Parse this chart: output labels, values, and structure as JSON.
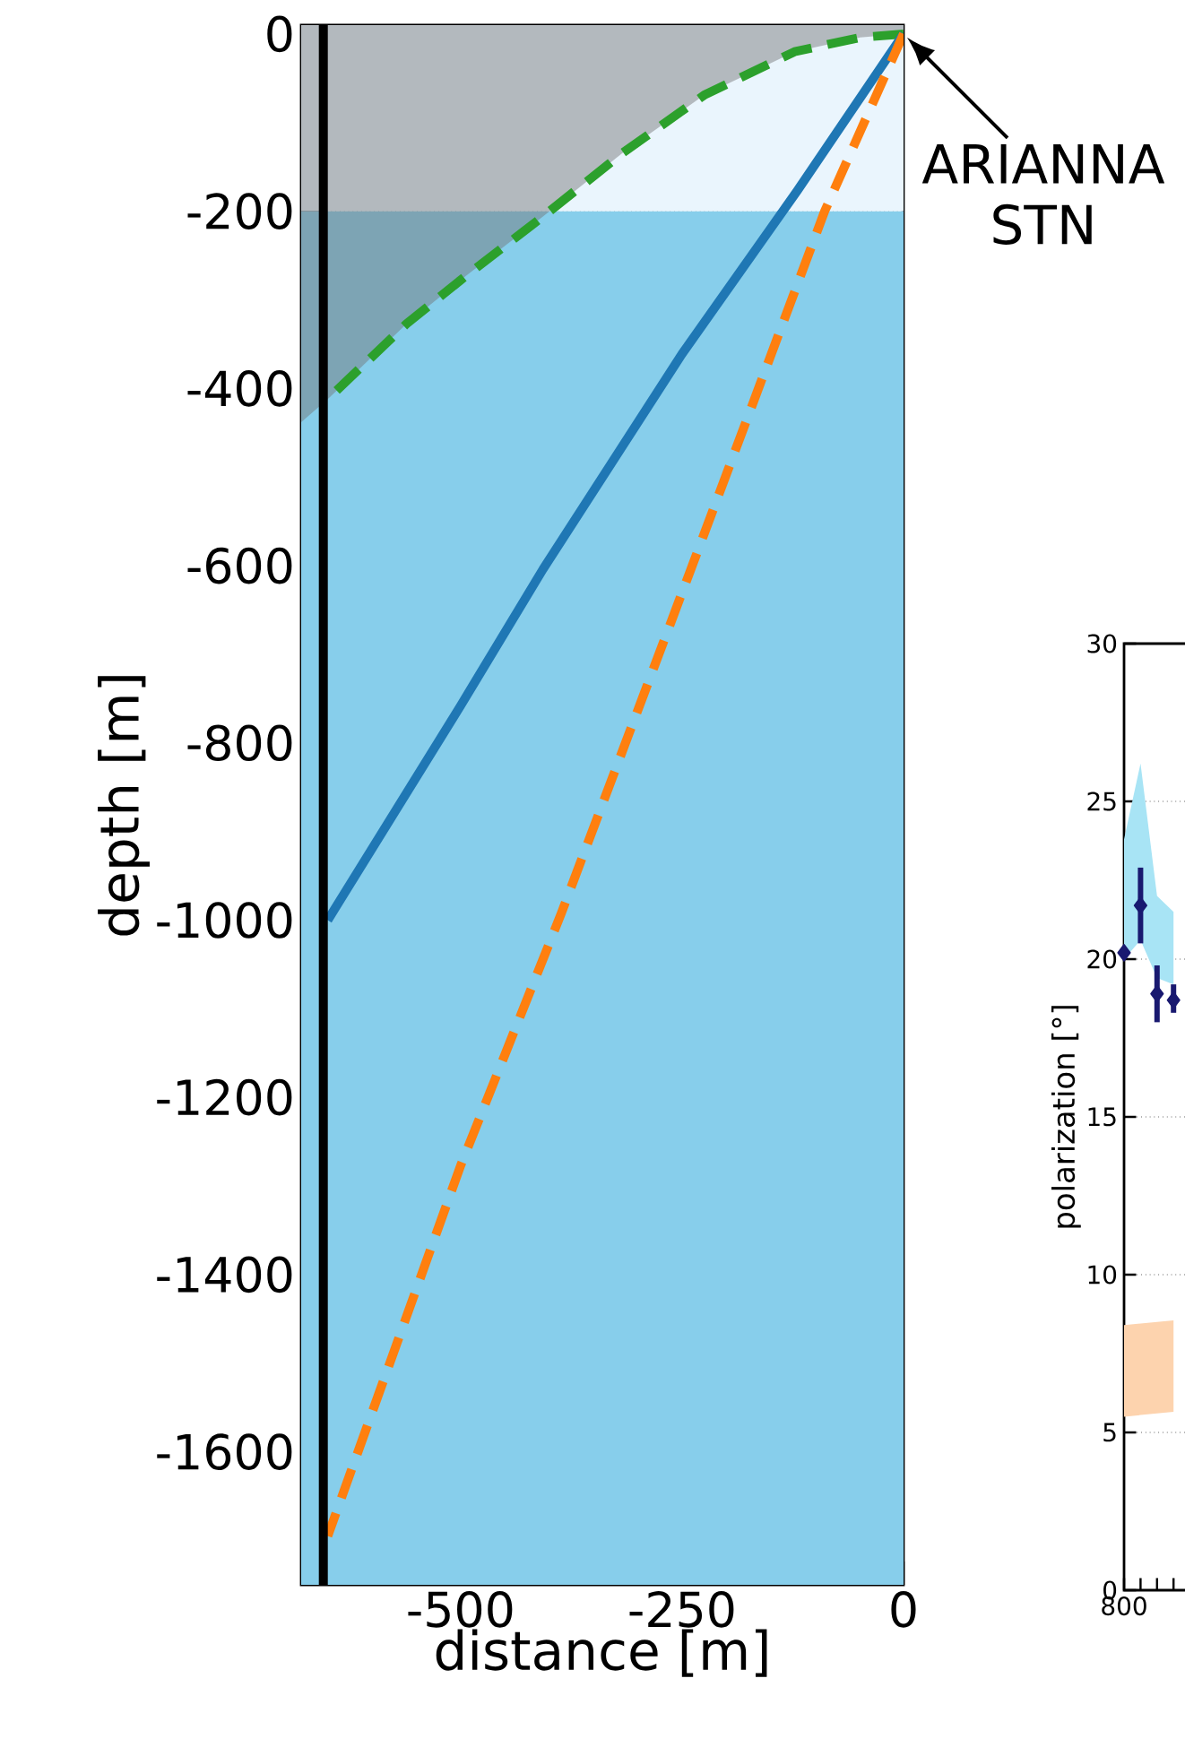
{
  "chart_data": [
    {
      "type": "line",
      "xlabel": "distance [m]",
      "ylabel": "depth [m]",
      "xlim": [
        -680,
        0
      ],
      "ylim": [
        -1750,
        10
      ],
      "xticks": [
        -500,
        -250,
        0
      ],
      "yticks": [
        0,
        -200,
        -400,
        -600,
        -800,
        -1000,
        -1200,
        -1400,
        -1600
      ],
      "grid": true,
      "bands": [
        {
          "axis": "y",
          "from": -1750,
          "to": -200,
          "color": "#87ceeb"
        },
        {
          "axis": "y",
          "from": -200,
          "to": 10,
          "color": "#eaf5fd"
        }
      ],
      "series": [
        {
          "type": "area",
          "color": "#707070",
          "x": [
            0,
            -49,
            -123,
            -225,
            -318,
            -407,
            -494,
            -561,
            -650,
            -680
          ],
          "values": [
            null,
            null,
            null,
            null,
            null,
            null,
            null,
            null,
            null,
            null
          ],
          "lower": [
            0,
            -4,
            -20,
            -69,
            -135,
            -206,
            -273,
            -327,
            -412,
            -438
          ],
          "upper": [
            10,
            10,
            10,
            10,
            10,
            10,
            10,
            10,
            10,
            10
          ]
        },
        {
          "color": "#2ca02c",
          "line_style": "dashed",
          "x": [
            0,
            -49,
            -123,
            -225,
            -318,
            -407,
            -494,
            -561,
            -650
          ],
          "values": [
            0,
            -4,
            -20,
            -69,
            -135,
            -206,
            -273,
            -327,
            -412
          ]
        },
        {
          "color": "#1f77b4",
          "line_style": "solid",
          "x": [
            0,
            -120,
            -250,
            -407,
            -500,
            -650
          ],
          "values": [
            0,
            -177,
            -361,
            -604,
            -758,
            -1000
          ]
        },
        {
          "color": "#ff7f0e",
          "line_style": "dashed",
          "x": [
            0,
            -89,
            -237,
            -387,
            -500,
            -650
          ],
          "values": [
            0,
            -200,
            -596,
            -994,
            -1277,
            -1695
          ]
        }
      ],
      "ref_lines": [
        {
          "axis": "x",
          "value": -655,
          "color": "#000000"
        }
      ],
      "annotations": [
        {
          "text": "ARIANNA STN",
          "x": 0,
          "y": 0
        }
      ]
    },
    {
      "type": "scatter",
      "ylabel": "polarization [°]",
      "categories": [
        "800",
        null,
        null,
        null
      ],
      "ylim": [
        0,
        30
      ],
      "yticks": [
        0,
        5,
        10,
        15,
        20,
        25,
        30
      ],
      "grid": "y",
      "marker": "diamond",
      "series": [
        {
          "type": "area",
          "color": "#a8e4f5",
          "values": [
            null,
            null,
            null,
            null
          ],
          "lower": [
            20.0,
            20.6,
            19.4,
            19.2
          ],
          "upper": [
            23.8,
            26.2,
            22.0,
            21.5
          ]
        },
        {
          "type": "area",
          "color": "#fdd3ae",
          "values": [
            null,
            null,
            null,
            null
          ],
          "lower": [
            5.5,
            5.55,
            5.6,
            5.65
          ],
          "upper": [
            8.4,
            8.45,
            8.5,
            8.55
          ]
        },
        {
          "color": "#191970",
          "values": [
            20.2,
            21.7,
            18.9,
            18.7
          ],
          "errors": [
            null,
            [
              20.5,
              22.9
            ],
            [
              18.0,
              19.8
            ],
            [
              18.3,
              19.2
            ]
          ]
        }
      ]
    }
  ]
}
